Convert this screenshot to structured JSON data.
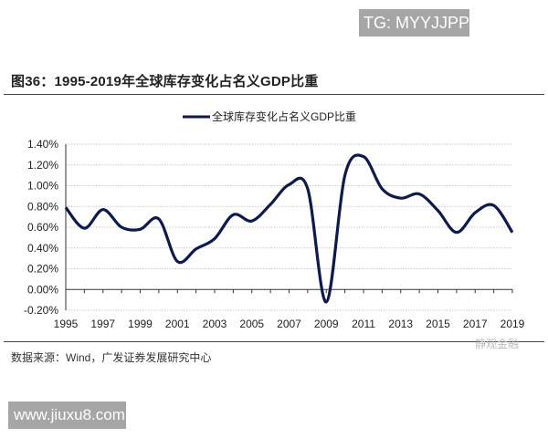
{
  "watermark_top": "TG: MYYJJPP",
  "figure_title": "图36：1995-2019年全球库存变化占名义GDP比重",
  "source": "数据来源：Wind，广发证券发展研究中心",
  "watermark_wechat": "静观金融",
  "watermark_site": "www.jiuxu8.com",
  "colors": {
    "series": "#0d1a4d",
    "grid": "#c8c8c8"
  },
  "chart_data": {
    "type": "line",
    "title": "",
    "xlabel": "",
    "ylabel": "",
    "legend": {
      "position": "top-center",
      "entries": [
        "全球库存变化占名义GDP比重"
      ]
    },
    "x": [
      1995,
      1996,
      1997,
      1998,
      1999,
      2000,
      2001,
      2002,
      2003,
      2004,
      2005,
      2006,
      2007,
      2008,
      2009,
      2010,
      2011,
      2012,
      2013,
      2014,
      2015,
      2016,
      2017,
      2018,
      2019
    ],
    "series": [
      {
        "name": "全球库存变化占名义GDP比重",
        "unit": "%",
        "values": [
          0.79,
          0.59,
          0.77,
          0.6,
          0.58,
          0.68,
          0.27,
          0.39,
          0.49,
          0.72,
          0.66,
          0.82,
          1.01,
          0.97,
          -0.12,
          1.1,
          1.28,
          0.97,
          0.88,
          0.92,
          0.76,
          0.55,
          0.74,
          0.81,
          0.55
        ]
      }
    ],
    "ylim": [
      -0.2,
      1.4
    ],
    "yticks": [
      "-0.20%",
      "0.00%",
      "0.20%",
      "0.40%",
      "0.60%",
      "0.80%",
      "1.00%",
      "1.20%",
      "1.40%"
    ],
    "xticks": [
      "1995",
      "1997",
      "1999",
      "2001",
      "2003",
      "2005",
      "2007",
      "2009",
      "2011",
      "2013",
      "2015",
      "2017",
      "2019"
    ],
    "grid": true
  }
}
